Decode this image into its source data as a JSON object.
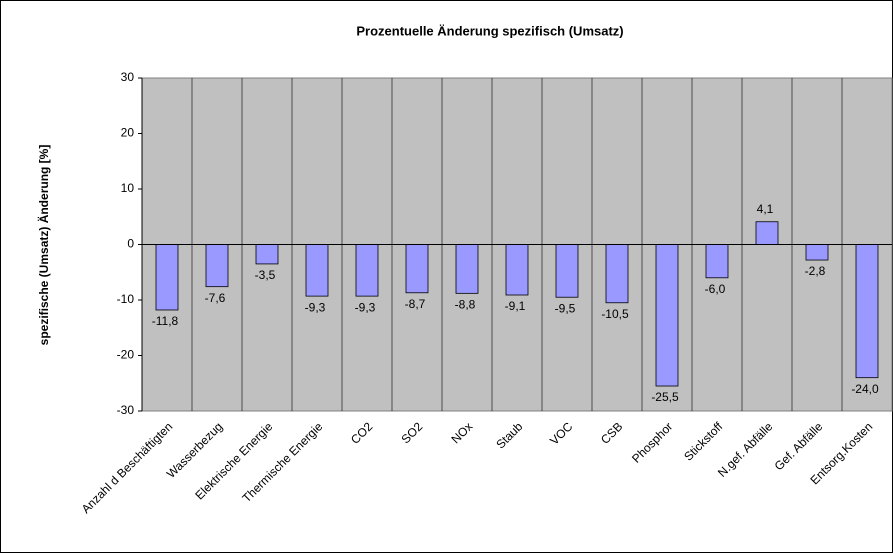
{
  "chart_data": {
    "type": "bar",
    "title": "Prozentuelle Änderung spezifisch (Umsatz)",
    "y_label": "spezifische (Umsatz) Änderung [%]",
    "categories": [
      "Anzahl d Beschäftigten",
      "Wasserbezug",
      "Elektrische Energie",
      "Thermische Energie",
      "CO2",
      "SO2",
      "NOx",
      "Staub",
      "VOC",
      "CSB",
      "Phosphor",
      "Stickstoff",
      "N.gef. Abfälle",
      "Gef. Abfälle",
      "Entsorg.Kosten"
    ],
    "values": [
      -11.8,
      -7.6,
      -3.5,
      -9.3,
      -9.3,
      -8.7,
      -8.8,
      -9.1,
      -9.5,
      -10.5,
      -25.5,
      -6.0,
      4.1,
      -2.8,
      -24.0
    ],
    "value_labels": [
      "-11,8",
      "-7,6",
      "-3,5",
      "-9,3",
      "-9,3",
      "-8,7",
      "-8,8",
      "-9,1",
      "-9,5",
      "-10,5",
      "-25,5",
      "-6,0",
      "4,1",
      "-2,8",
      "-24,0"
    ],
    "color": "#9999ff",
    "ylim": [
      -30,
      30
    ],
    "yticks": [
      -30,
      -20,
      -10,
      0,
      10,
      20,
      30
    ]
  }
}
